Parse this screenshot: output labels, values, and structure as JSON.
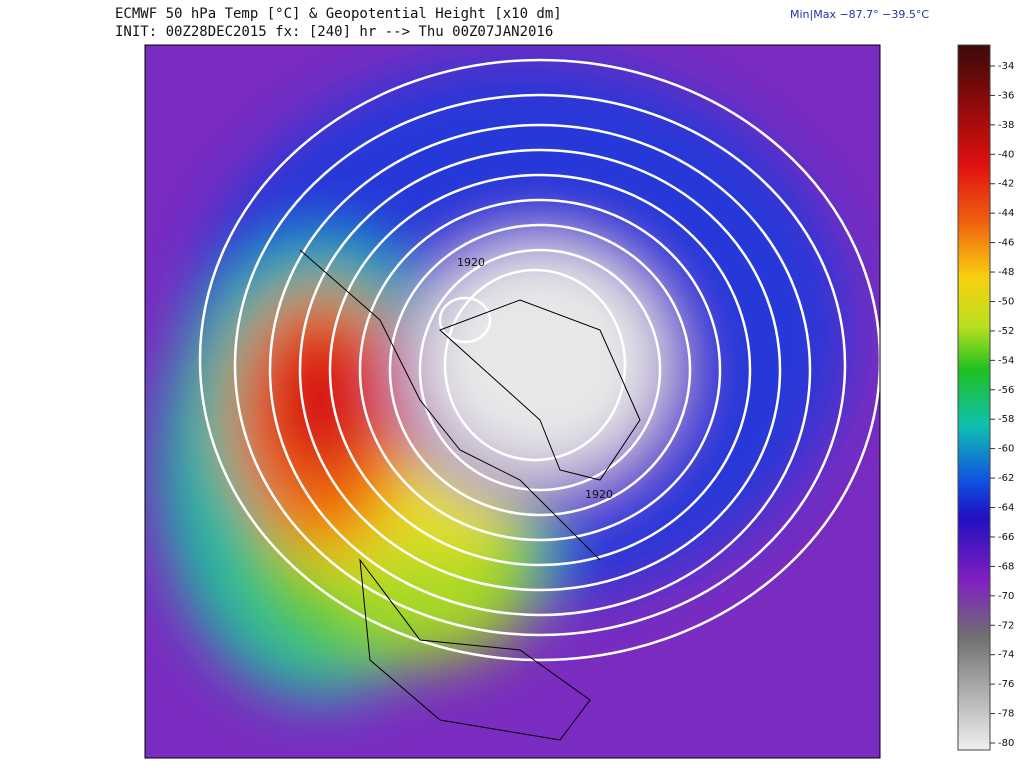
{
  "header": {
    "title": "ECMWF 50 hPa Temp [°C] & Geopotential Height [x10 dm]",
    "subtitle": "INIT: 00Z28DEC2015 fx: [240] hr --> Thu 00Z07JAN2016",
    "minmax": "Min|Max −87.7° −39.5°C"
  },
  "colorbar": {
    "ticks": [
      -34,
      -36,
      -38,
      -40,
      -42,
      -44,
      -46,
      -48,
      -50,
      -52,
      -54,
      -56,
      -58,
      -60,
      -62,
      -64,
      -66,
      -68,
      -70,
      -72,
      -74,
      -76,
      -78,
      -80
    ]
  },
  "map": {
    "contour_labels": [
      "1920",
      "1920"
    ]
  }
}
